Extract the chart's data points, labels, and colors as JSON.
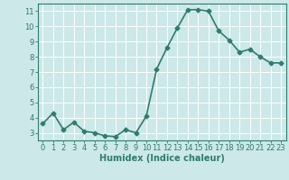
{
  "x": [
    0,
    1,
    2,
    3,
    4,
    5,
    6,
    7,
    8,
    9,
    10,
    11,
    12,
    13,
    14,
    15,
    16,
    17,
    18,
    19,
    20,
    21,
    22,
    23
  ],
  "y": [
    3.6,
    4.3,
    3.2,
    3.7,
    3.1,
    3.0,
    2.8,
    2.75,
    3.2,
    3.0,
    4.1,
    7.2,
    8.6,
    9.9,
    11.1,
    11.1,
    11.0,
    9.7,
    9.1,
    8.3,
    8.5,
    8.0,
    7.6,
    7.6
  ],
  "line_color": "#2e7d6e",
  "marker": "D",
  "marker_size": 2.5,
  "bg_color": "#cce8e8",
  "grid_color": "#ffffff",
  "xlabel": "Humidex (Indice chaleur)",
  "xlim": [
    -0.5,
    23.5
  ],
  "ylim": [
    2.5,
    11.5
  ],
  "yticks": [
    3,
    4,
    5,
    6,
    7,
    8,
    9,
    10,
    11
  ],
  "xticks": [
    0,
    1,
    2,
    3,
    4,
    5,
    6,
    7,
    8,
    9,
    10,
    11,
    12,
    13,
    14,
    15,
    16,
    17,
    18,
    19,
    20,
    21,
    22,
    23
  ],
  "tick_color": "#2e7d6e",
  "label_color": "#2e7d6e",
  "axis_color": "#2e7d6e",
  "xlabel_fontsize": 7,
  "tick_fontsize": 6,
  "linewidth": 1.2
}
